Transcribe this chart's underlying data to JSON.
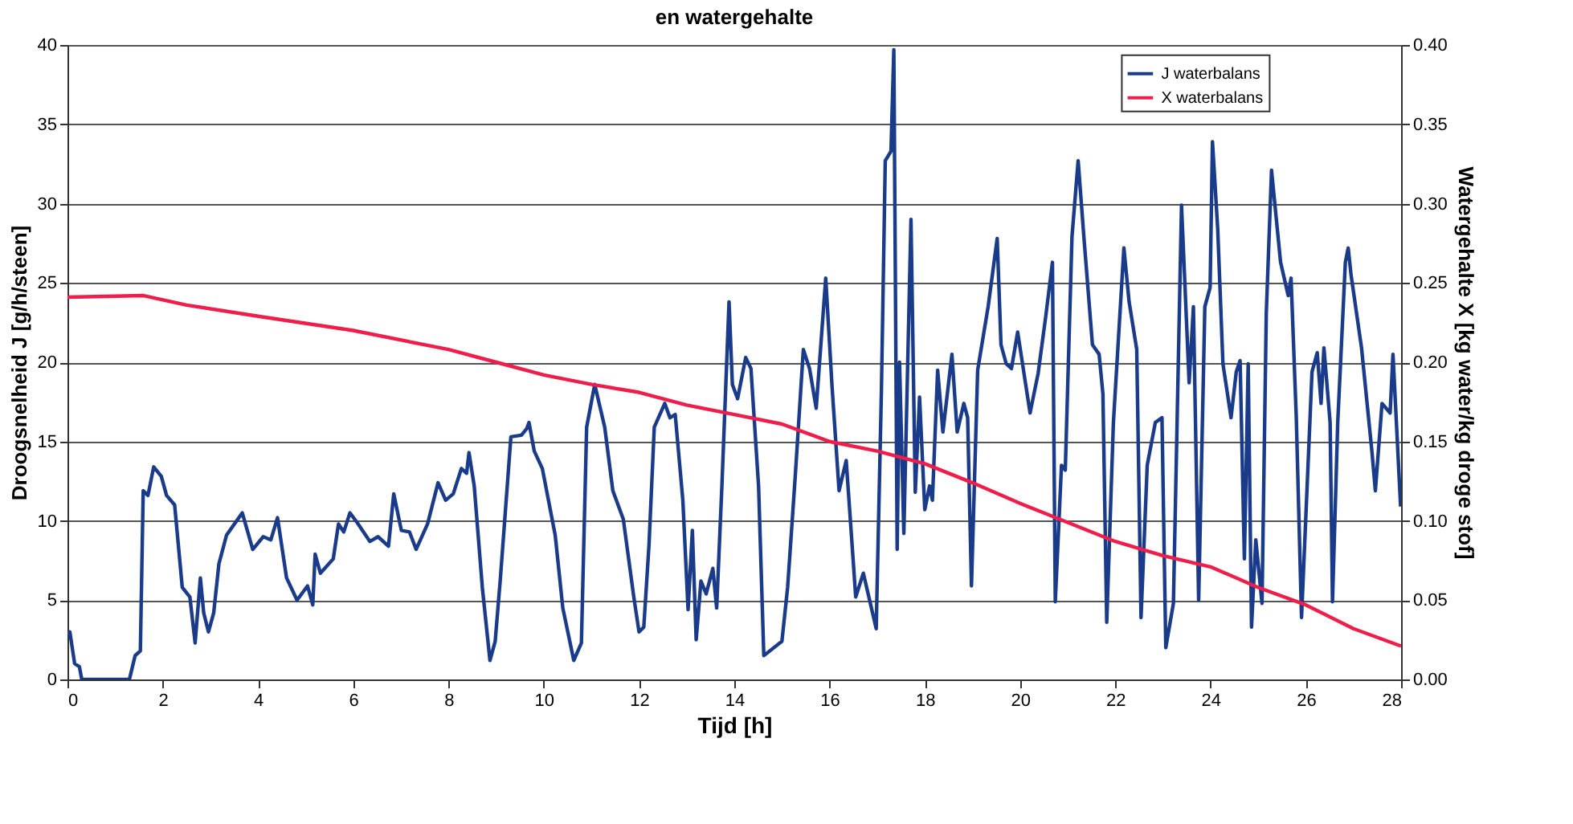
{
  "chart_data": {
    "type": "line",
    "title": "en watergehalte",
    "xlabel": "Tijd [h]",
    "ylabel": "Droogsnelheid J [g/h/steen]",
    "y2label": "Watergehalte X [kg water/kg droge stof]",
    "xlim": [
      0,
      28
    ],
    "xticks": [
      0,
      2,
      4,
      6,
      8,
      10,
      12,
      14,
      16,
      18,
      20,
      22,
      24,
      26,
      28
    ],
    "ylim": [
      0,
      40
    ],
    "yticks": [
      0,
      5,
      10,
      15,
      20,
      25,
      30,
      35,
      40
    ],
    "y2lim": [
      0,
      0.4
    ],
    "y2ticks": [
      {
        "value": 0,
        "label": "0.00"
      },
      0.05,
      {
        "value": 0.1,
        "label": "0.10"
      },
      0.15,
      {
        "value": 0.2,
        "label": "0.20"
      },
      0.25,
      {
        "value": 0.3,
        "label": "0.30"
      },
      0.35,
      {
        "value": 0.4,
        "label": "0.40"
      }
    ],
    "grid": "y",
    "legend": "top right",
    "line_style": "solid",
    "marker": "none",
    "series": [
      {
        "name": "J waterbalans",
        "color": "#1a3a8a",
        "x": [
          0,
          0.05,
          0.15,
          0.25,
          0.3,
          1.3,
          1.42,
          1.53,
          1.59,
          1.69,
          1.81,
          1.97,
          2.08,
          2.25,
          2.41,
          2.57,
          2.68,
          2.79,
          2.86,
          2.96,
          3.07,
          3.18,
          3.34,
          3.67,
          3.89,
          4.11,
          4.27,
          4.41,
          4.6,
          4.82,
          5.04,
          5.15,
          5.2,
          5.31,
          5.58,
          5.69,
          5.8,
          5.93,
          6.08,
          6.35,
          6.52,
          6.74,
          6.85,
          7.01,
          7.18,
          7.32,
          7.56,
          7.78,
          7.94,
          8.1,
          8.27,
          8.38,
          8.43,
          8.54,
          8.71,
          8.87,
          8.98,
          9.09,
          9.31,
          9.53,
          9.64,
          9.69,
          9.8,
          9.97,
          10.24,
          10.4,
          10.63,
          10.79,
          10.9,
          11.07,
          11.28,
          11.45,
          11.67,
          11.89,
          12.0,
          12.1,
          12.21,
          12.32,
          12.54,
          12.65,
          12.76,
          12.92,
          13.03,
          13.12,
          13.2,
          13.3,
          13.41,
          13.55,
          13.63,
          13.74,
          13.89,
          13.96,
          14.07,
          14.24,
          14.35,
          14.51,
          14.62,
          15.0,
          15.12,
          15.28,
          15.45,
          15.58,
          15.72,
          15.92,
          16.05,
          16.2,
          16.35,
          16.55,
          16.71,
          16.98,
          17.09,
          17.17,
          17.29,
          17.35,
          17.42,
          17.47,
          17.56,
          17.71,
          17.8,
          17.89,
          18.0,
          18.1,
          18.16,
          18.27,
          18.38,
          18.57,
          18.68,
          18.82,
          18.9,
          18.98,
          19.11,
          19.33,
          19.52,
          19.6,
          19.71,
          19.82,
          19.95,
          20.21,
          20.38,
          20.54,
          20.68,
          20.74,
          20.87,
          20.95,
          21.09,
          21.22,
          21.34,
          21.52,
          21.66,
          21.74,
          21.82,
          21.96,
          22.18,
          22.29,
          22.45,
          22.54,
          22.67,
          22.84,
          22.98,
          23.06,
          23.22,
          23.39,
          23.55,
          23.64,
          23.75,
          23.88,
          23.99,
          24.04,
          24.15,
          24.26,
          24.43,
          24.54,
          24.62,
          24.71,
          24.79,
          24.86,
          24.95,
          25.08,
          25.17,
          25.28,
          25.47,
          25.63,
          25.69,
          25.8,
          25.91,
          26.13,
          26.24,
          26.32,
          26.38,
          26.51,
          26.56,
          26.67,
          26.83,
          26.89,
          26.95,
          27.17,
          27.39,
          27.46,
          27.6,
          27.77,
          27.83,
          27.99
        ],
        "values": [
          2.8,
          3.0,
          1.0,
          0.8,
          0,
          0,
          1.5,
          1.8,
          11.9,
          11.6,
          13.4,
          12.8,
          11.6,
          11.0,
          5.8,
          5.2,
          2.3,
          6.4,
          4.2,
          3.0,
          4.2,
          7.3,
          9.1,
          10.5,
          8.2,
          9.0,
          8.8,
          10.2,
          6.4,
          5.0,
          5.9,
          4.7,
          7.9,
          6.7,
          7.6,
          9.8,
          9.3,
          10.5,
          9.9,
          8.7,
          9.0,
          8.4,
          11.7,
          9.4,
          9.3,
          8.2,
          9.8,
          12.4,
          11.3,
          11.7,
          13.3,
          13.0,
          14.3,
          12.2,
          5.8,
          1.2,
          2.4,
          6.4,
          15.3,
          15.4,
          15.8,
          16.2,
          14.4,
          13.3,
          9.1,
          4.5,
          1.2,
          2.3,
          15.9,
          18.6,
          15.9,
          11.9,
          10.1,
          5.2,
          3.0,
          3.3,
          8.5,
          15.9,
          17.4,
          16.5,
          16.7,
          11.3,
          4.4,
          9.4,
          2.5,
          6.2,
          5.4,
          7.0,
          4.5,
          12.2,
          23.8,
          18.6,
          17.7,
          20.3,
          19.6,
          12.2,
          1.5,
          2.4,
          5.8,
          12.8,
          20.8,
          19.6,
          17.1,
          25.3,
          18.6,
          11.9,
          13.8,
          5.2,
          6.7,
          3.2,
          18.3,
          32.7,
          33.3,
          39.7,
          8.2,
          20.0,
          9.2,
          29.0,
          11.8,
          17.8,
          10.7,
          12.2,
          11.3,
          19.5,
          15.6,
          20.5,
          15.6,
          17.4,
          16.5,
          5.9,
          19.5,
          23.5,
          27.8,
          21.1,
          19.9,
          19.6,
          21.9,
          16.8,
          19.3,
          22.9,
          26.3,
          4.9,
          13.5,
          13.2,
          27.9,
          32.7,
          27.9,
          21.1,
          20.5,
          18.0,
          3.6,
          16.2,
          27.2,
          23.8,
          20.8,
          3.9,
          13.5,
          16.2,
          16.5,
          2.0,
          4.8,
          29.9,
          18.7,
          23.5,
          5.0,
          23.5,
          24.7,
          33.9,
          28.4,
          19.9,
          16.5,
          19.4,
          20.1,
          7.6,
          19.9,
          3.3,
          8.8,
          4.8,
          23.1,
          32.1,
          26.3,
          24.2,
          25.3,
          16.5,
          3.9,
          19.4,
          20.6,
          17.4,
          20.9,
          16.2,
          4.9,
          16.2,
          26.3,
          27.2,
          25.5,
          20.9,
          14.3,
          11.9,
          17.4,
          16.8,
          20.5,
          10.9
        ]
      },
      {
        "name": "X waterbalans",
        "color": "#ee1d4a",
        "axis": "y2",
        "x": [
          0,
          1.6,
          2.5,
          4,
          6,
          8,
          9,
          10,
          11,
          12,
          13,
          14,
          15,
          16,
          17,
          18,
          19,
          20,
          21,
          22,
          23,
          24,
          25,
          26,
          27,
          28
        ],
        "values": [
          0.241,
          0.242,
          0.236,
          0.229,
          0.22,
          0.208,
          0.2,
          0.192,
          0.186,
          0.181,
          0.173,
          0.167,
          0.161,
          0.15,
          0.144,
          0.136,
          0.124,
          0.111,
          0.099,
          0.087,
          0.078,
          0.071,
          0.058,
          0.047,
          0.032,
          0.021
        ]
      }
    ]
  }
}
